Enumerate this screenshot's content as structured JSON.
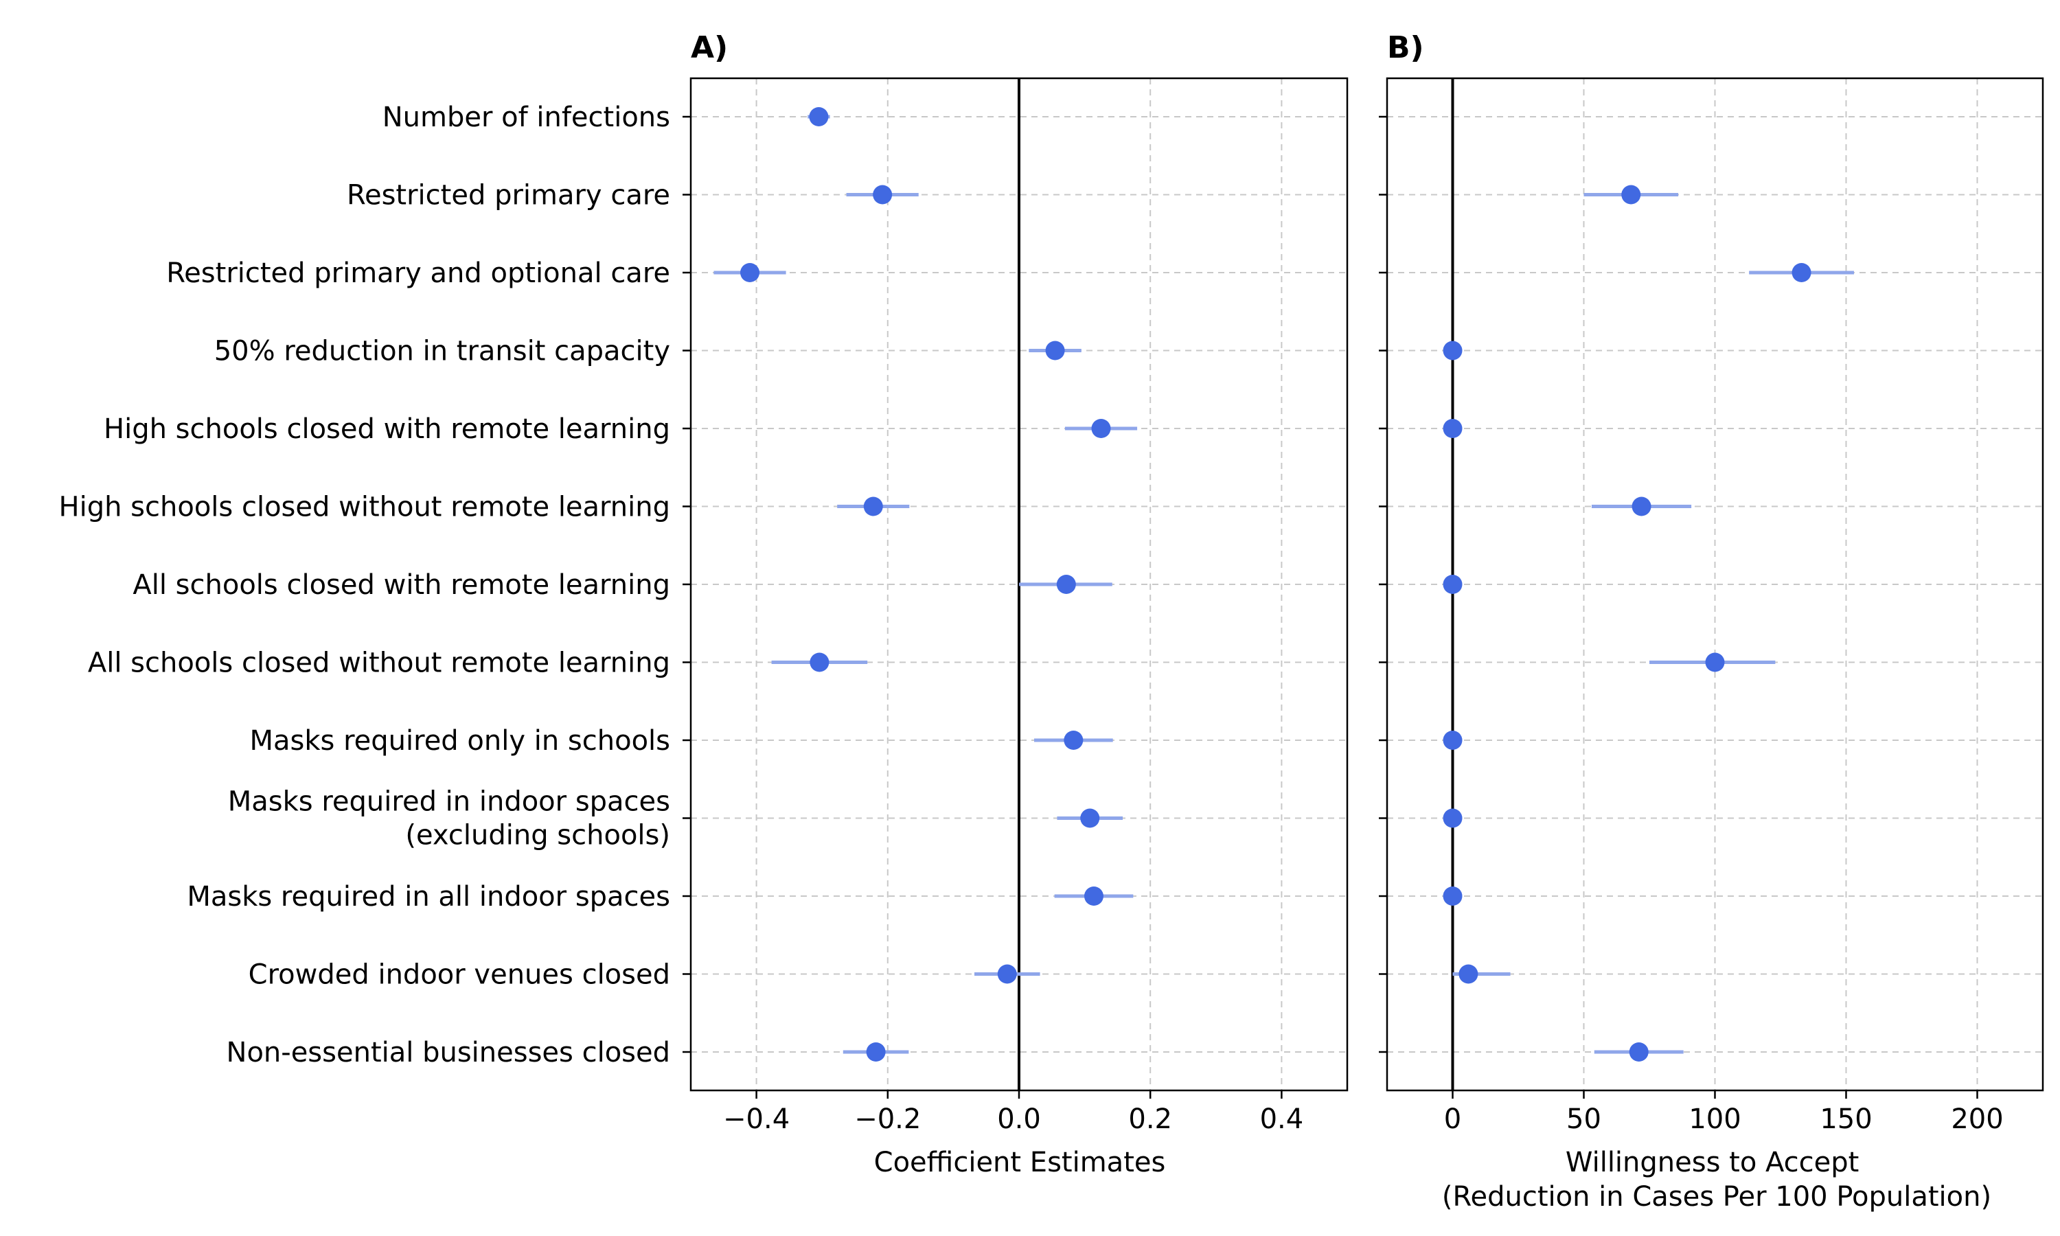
{
  "chart_data": [
    {
      "type": "scatter",
      "title": "A)",
      "xlabel": "Coefficient Estimates",
      "ylabel": "",
      "xlim": [
        -0.5,
        0.5
      ],
      "xticks": [
        -0.4,
        -0.2,
        0.0,
        0.2,
        0.4
      ],
      "xtick_labels": [
        "−0.4",
        "−0.2",
        "0.0",
        "0.2",
        "0.4"
      ],
      "reference_line_x": 0,
      "grid": true,
      "categories": [
        "Number of infections",
        "Restricted primary care",
        "Restricted primary and optional care",
        "50% reduction in transit capacity",
        "High schools closed with remote learning",
        "High schools closed without remote learning",
        "All schools closed with remote learning",
        "All schools closed without remote learning",
        "Masks required only in schools",
        "Masks required in indoor spaces\n(excluding schools)",
        "Masks required in all indoor spaces",
        "Crowded indoor venues closed",
        "Non-essential businesses closed"
      ],
      "series": [
        {
          "values": [
            -0.305,
            -0.208,
            -0.41,
            0.055,
            0.125,
            -0.222,
            0.072,
            -0.304,
            0.083,
            0.108,
            0.114,
            -0.018,
            -0.218
          ],
          "ci_low": [
            -0.322,
            -0.263,
            -0.465,
            0.015,
            0.07,
            -0.277,
            0.0,
            -0.377,
            0.023,
            0.058,
            0.054,
            -0.068,
            -0.268
          ],
          "ci_high": [
            -0.288,
            -0.153,
            -0.355,
            0.095,
            0.18,
            -0.167,
            0.142,
            -0.231,
            0.143,
            0.158,
            0.174,
            0.032,
            -0.168
          ]
        }
      ]
    },
    {
      "type": "scatter",
      "title": "B)",
      "xlabel": "Willingness to Accept\n(Reduction in Cases Per 100 Population)",
      "ylabel": "",
      "xlim": [
        -25,
        225
      ],
      "xticks": [
        0,
        50,
        100,
        150,
        200
      ],
      "xtick_labels": [
        "0",
        "50",
        "100",
        "150",
        "200"
      ],
      "reference_line_x": 0,
      "grid": true,
      "shares_y_with": "A)",
      "series": [
        {
          "values": [
            null,
            68,
            133,
            0,
            0,
            72,
            0,
            100,
            0,
            0,
            0,
            6,
            71
          ],
          "ci_low": [
            null,
            50,
            113,
            0,
            0,
            53,
            0,
            75,
            0,
            0,
            0,
            0,
            54
          ],
          "ci_high": [
            null,
            86,
            153,
            0,
            0,
            91,
            0,
            123,
            0,
            0,
            0,
            22,
            88
          ]
        }
      ]
    }
  ],
  "colors": {
    "point": "#4169e1",
    "error_bar": "#8fa6ea",
    "grid": "#c8c8c8",
    "reference_line": "#000000",
    "axes": "#000000"
  }
}
